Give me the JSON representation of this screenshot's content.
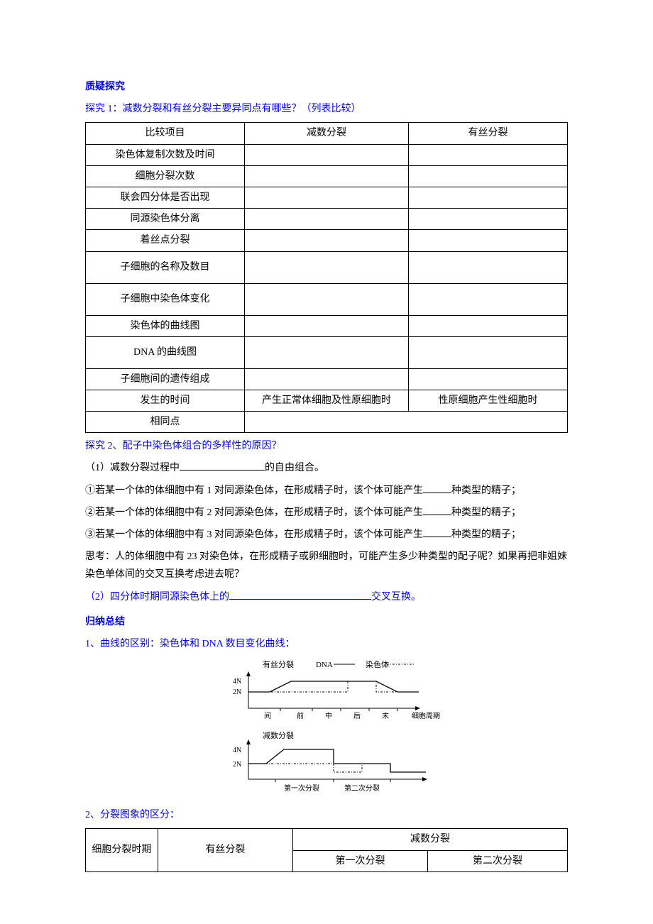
{
  "headings": {
    "title1": "质疑探究",
    "inquiry1": "探究 1：减数分裂和有丝分裂主要异同点有哪些？（列表比较）",
    "inquiry2": "探究 2、配子中染色体组合的多样性的原因？",
    "summary": "归纳总结"
  },
  "table1": {
    "headers": [
      "比较项目",
      "减数分裂",
      "有丝分裂"
    ],
    "rows": [
      {
        "label": "染色体复制次数及时间",
        "c1": "",
        "c2": ""
      },
      {
        "label": "细胞分裂次数",
        "c1": "",
        "c2": ""
      },
      {
        "label": "联会四分体是否出现",
        "c1": "",
        "c2": ""
      },
      {
        "label": "同源染色体分离",
        "c1": "",
        "c2": ""
      },
      {
        "label": "着丝点分裂",
        "c1": "",
        "c2": ""
      },
      {
        "label": "子细胞的名称及数目",
        "c1": "",
        "c2": "",
        "tall": true
      },
      {
        "label": "子细胞中染色体变化",
        "c1": "",
        "c2": "",
        "tall": true
      },
      {
        "label": "染色体的曲线图",
        "c1": "",
        "c2": ""
      },
      {
        "label": "DNA 的曲线图",
        "c1": "",
        "c2": "",
        "tall": true
      },
      {
        "label": "子细胞间的遗传组成",
        "c1": "",
        "c2": ""
      },
      {
        "label": "发生的时间",
        "c1": "产生正常体细胞及性原细胞时",
        "c2": "性原细胞产生性细胞时"
      },
      {
        "label": "相同点",
        "c1": "",
        "c2": "",
        "colspan": true
      }
    ]
  },
  "inquiry2_body": {
    "p1_pre": "（1）减数分裂过程中",
    "p1_post": "的自由组合。",
    "li1_pre": "①若某一个体的体细胞中有 1 对同源染色体，在形成精子时，该个体可能产生",
    "li1_post": "种类型的精子；",
    "li2_pre": "②若某一个体的体细胞中有 2 对同源染色体，在形成精子时，该个体可能产生",
    "li2_post": "种类型的精子；",
    "li3_pre": "③若某一个体的体细胞中有 3 对同源染色体，在形成精子时，该个体可能产生",
    "li3_post": "种类型的精子；",
    "think": "思考：人的体细胞中有 23 对染色体，在形成精子或卵细胞时，可能产生多少种类型的配子呢？如果再把非姐妹染色单体间的交叉互换考虑进去呢？",
    "p2_pre": "（2）四分体时期同源染色体上的",
    "p2_post": "交叉互换。"
  },
  "summary_body": {
    "l1": "1、曲线的区别：染色体和 DNA 数目变化曲线：",
    "l2": "2、分裂图象的区分："
  },
  "charts": {
    "top": {
      "title": "有丝分裂",
      "legend_dna": "DNA",
      "legend_chr": "染色体",
      "yticks": [
        "4N",
        "2N"
      ],
      "xticks": [
        "间",
        "前",
        "中",
        "后",
        "末"
      ],
      "xlabel": "细胞周期",
      "colors": {
        "axis": "#000000",
        "dna": "#000000",
        "chr": "#000000"
      }
    },
    "bottom": {
      "title": "减数分裂",
      "yticks": [
        "4N",
        "2N"
      ],
      "xgroups": [
        "第一次分裂",
        "第二次分裂"
      ],
      "colors": {
        "axis": "#000000",
        "dna": "#000000",
        "chr": "#000000"
      }
    }
  },
  "table2": {
    "r1c1": "细胞分裂时期",
    "r1c2": "有丝分裂",
    "r1c3": "减数分裂",
    "r2c1": "第一次分裂",
    "r2c2": "第二次分裂"
  }
}
